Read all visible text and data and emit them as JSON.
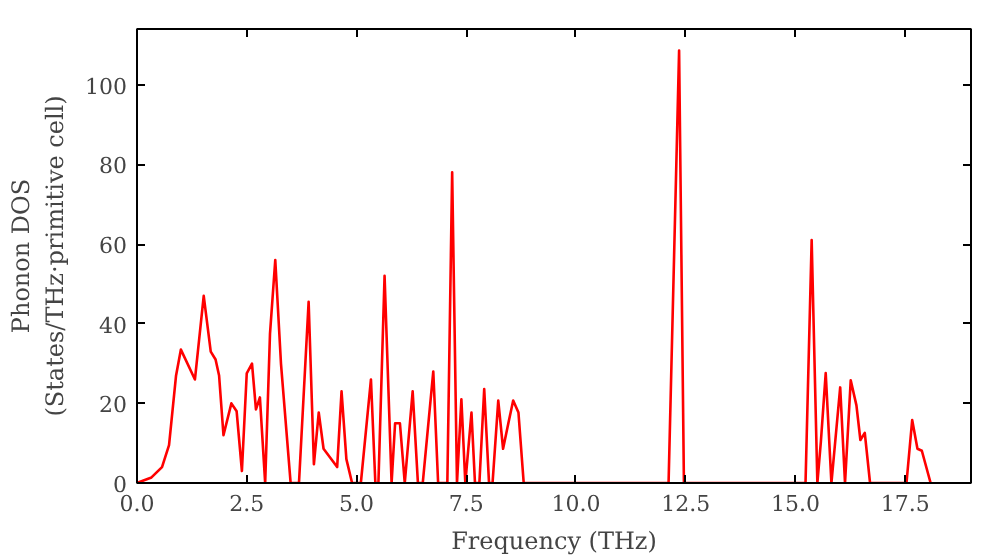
{
  "chart_data": {
    "type": "line",
    "xlabel": "Frequency (THz)",
    "ylabel": "Phonon DOS\n(States/THz·primitive cell)",
    "x": [
      0,
      0.33,
      0.57,
      0.73,
      0.89,
      1.0,
      1.32,
      1.52,
      1.68,
      1.79,
      1.87,
      1.97,
      2.15,
      2.27,
      2.39,
      2.5,
      2.62,
      2.71,
      2.8,
      2.92,
      3.03,
      3.15,
      3.28,
      3.5,
      3.69,
      3.91,
      4.03,
      4.14,
      4.25,
      4.56,
      4.66,
      4.77,
      4.9,
      5.1,
      5.33,
      5.43,
      5.5,
      5.64,
      5.8,
      5.88,
      5.99,
      6.1,
      6.28,
      6.4,
      6.51,
      6.75,
      6.86,
      7.07,
      7.18,
      7.29,
      7.39,
      7.48,
      7.62,
      7.7,
      7.8,
      7.91,
      8.02,
      8.1,
      8.23,
      8.34,
      8.46,
      8.57,
      8.69,
      8.81,
      12.11,
      12.35,
      12.46,
      15.23,
      15.37,
      15.5,
      15.58,
      15.69,
      15.82,
      16.02,
      16.13,
      16.26,
      16.39,
      16.48,
      16.58,
      16.7,
      17.53,
      17.66,
      17.78,
      17.88,
      18.08
    ],
    "series": [
      {
        "color": "#ff0000",
        "values": [
          0,
          1.4,
          4,
          9.5,
          27,
          33.5,
          26,
          47,
          33,
          31,
          27,
          12,
          20,
          18,
          3,
          27.5,
          30,
          18.5,
          21.5,
          0,
          37.5,
          56,
          30,
          0,
          0,
          45.5,
          4.7,
          17.7,
          8.6,
          4,
          23,
          6,
          0,
          0,
          26,
          0,
          0,
          52,
          0,
          15,
          15,
          0,
          23,
          0,
          0,
          28,
          0,
          0,
          78,
          0,
          21,
          0,
          17.7,
          0,
          0,
          23.6,
          0,
          0,
          20.7,
          8.6,
          15,
          20.7,
          17.7,
          0,
          0,
          108.6,
          0,
          0,
          61,
          0,
          10.4,
          27.6,
          0,
          24,
          0,
          25.8,
          19.5,
          10.8,
          12.6,
          0,
          0,
          15.8,
          8.6,
          8.1,
          0
        ]
      }
    ],
    "xlim": [
      0,
      19
    ],
    "ylim": [
      0,
      114
    ],
    "xticks": [
      {
        "value": 0,
        "label": "0.0"
      },
      {
        "value": 2.5,
        "label": "2.5"
      },
      {
        "value": 5,
        "label": "5.0"
      },
      {
        "value": 7.5,
        "label": "7.5"
      },
      {
        "value": 10,
        "label": "10.0"
      },
      {
        "value": 12.5,
        "label": "12.5"
      },
      {
        "value": 15,
        "label": "15.0"
      },
      {
        "value": 17.5,
        "label": "17.5"
      }
    ],
    "yticks": [
      0,
      20,
      40,
      60,
      80,
      100
    ],
    "grid": false,
    "line_style": "solid",
    "marker": "none"
  }
}
